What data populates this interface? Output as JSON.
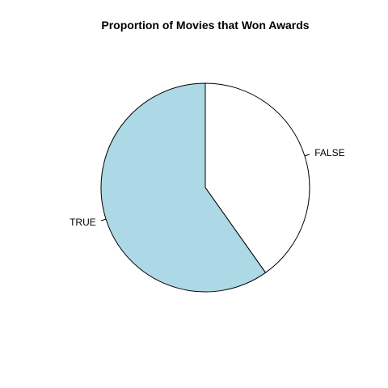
{
  "chart_data": {
    "type": "pie",
    "title": "Proportion of Movies that Won Awards",
    "slices": [
      {
        "label": "FALSE",
        "value": 0.402,
        "color": "#ffffff"
      },
      {
        "label": "TRUE",
        "value": 0.598,
        "color": "#add8e6"
      }
    ],
    "start_angle_deg": 90,
    "direction": "clockwise",
    "legend": "none"
  }
}
